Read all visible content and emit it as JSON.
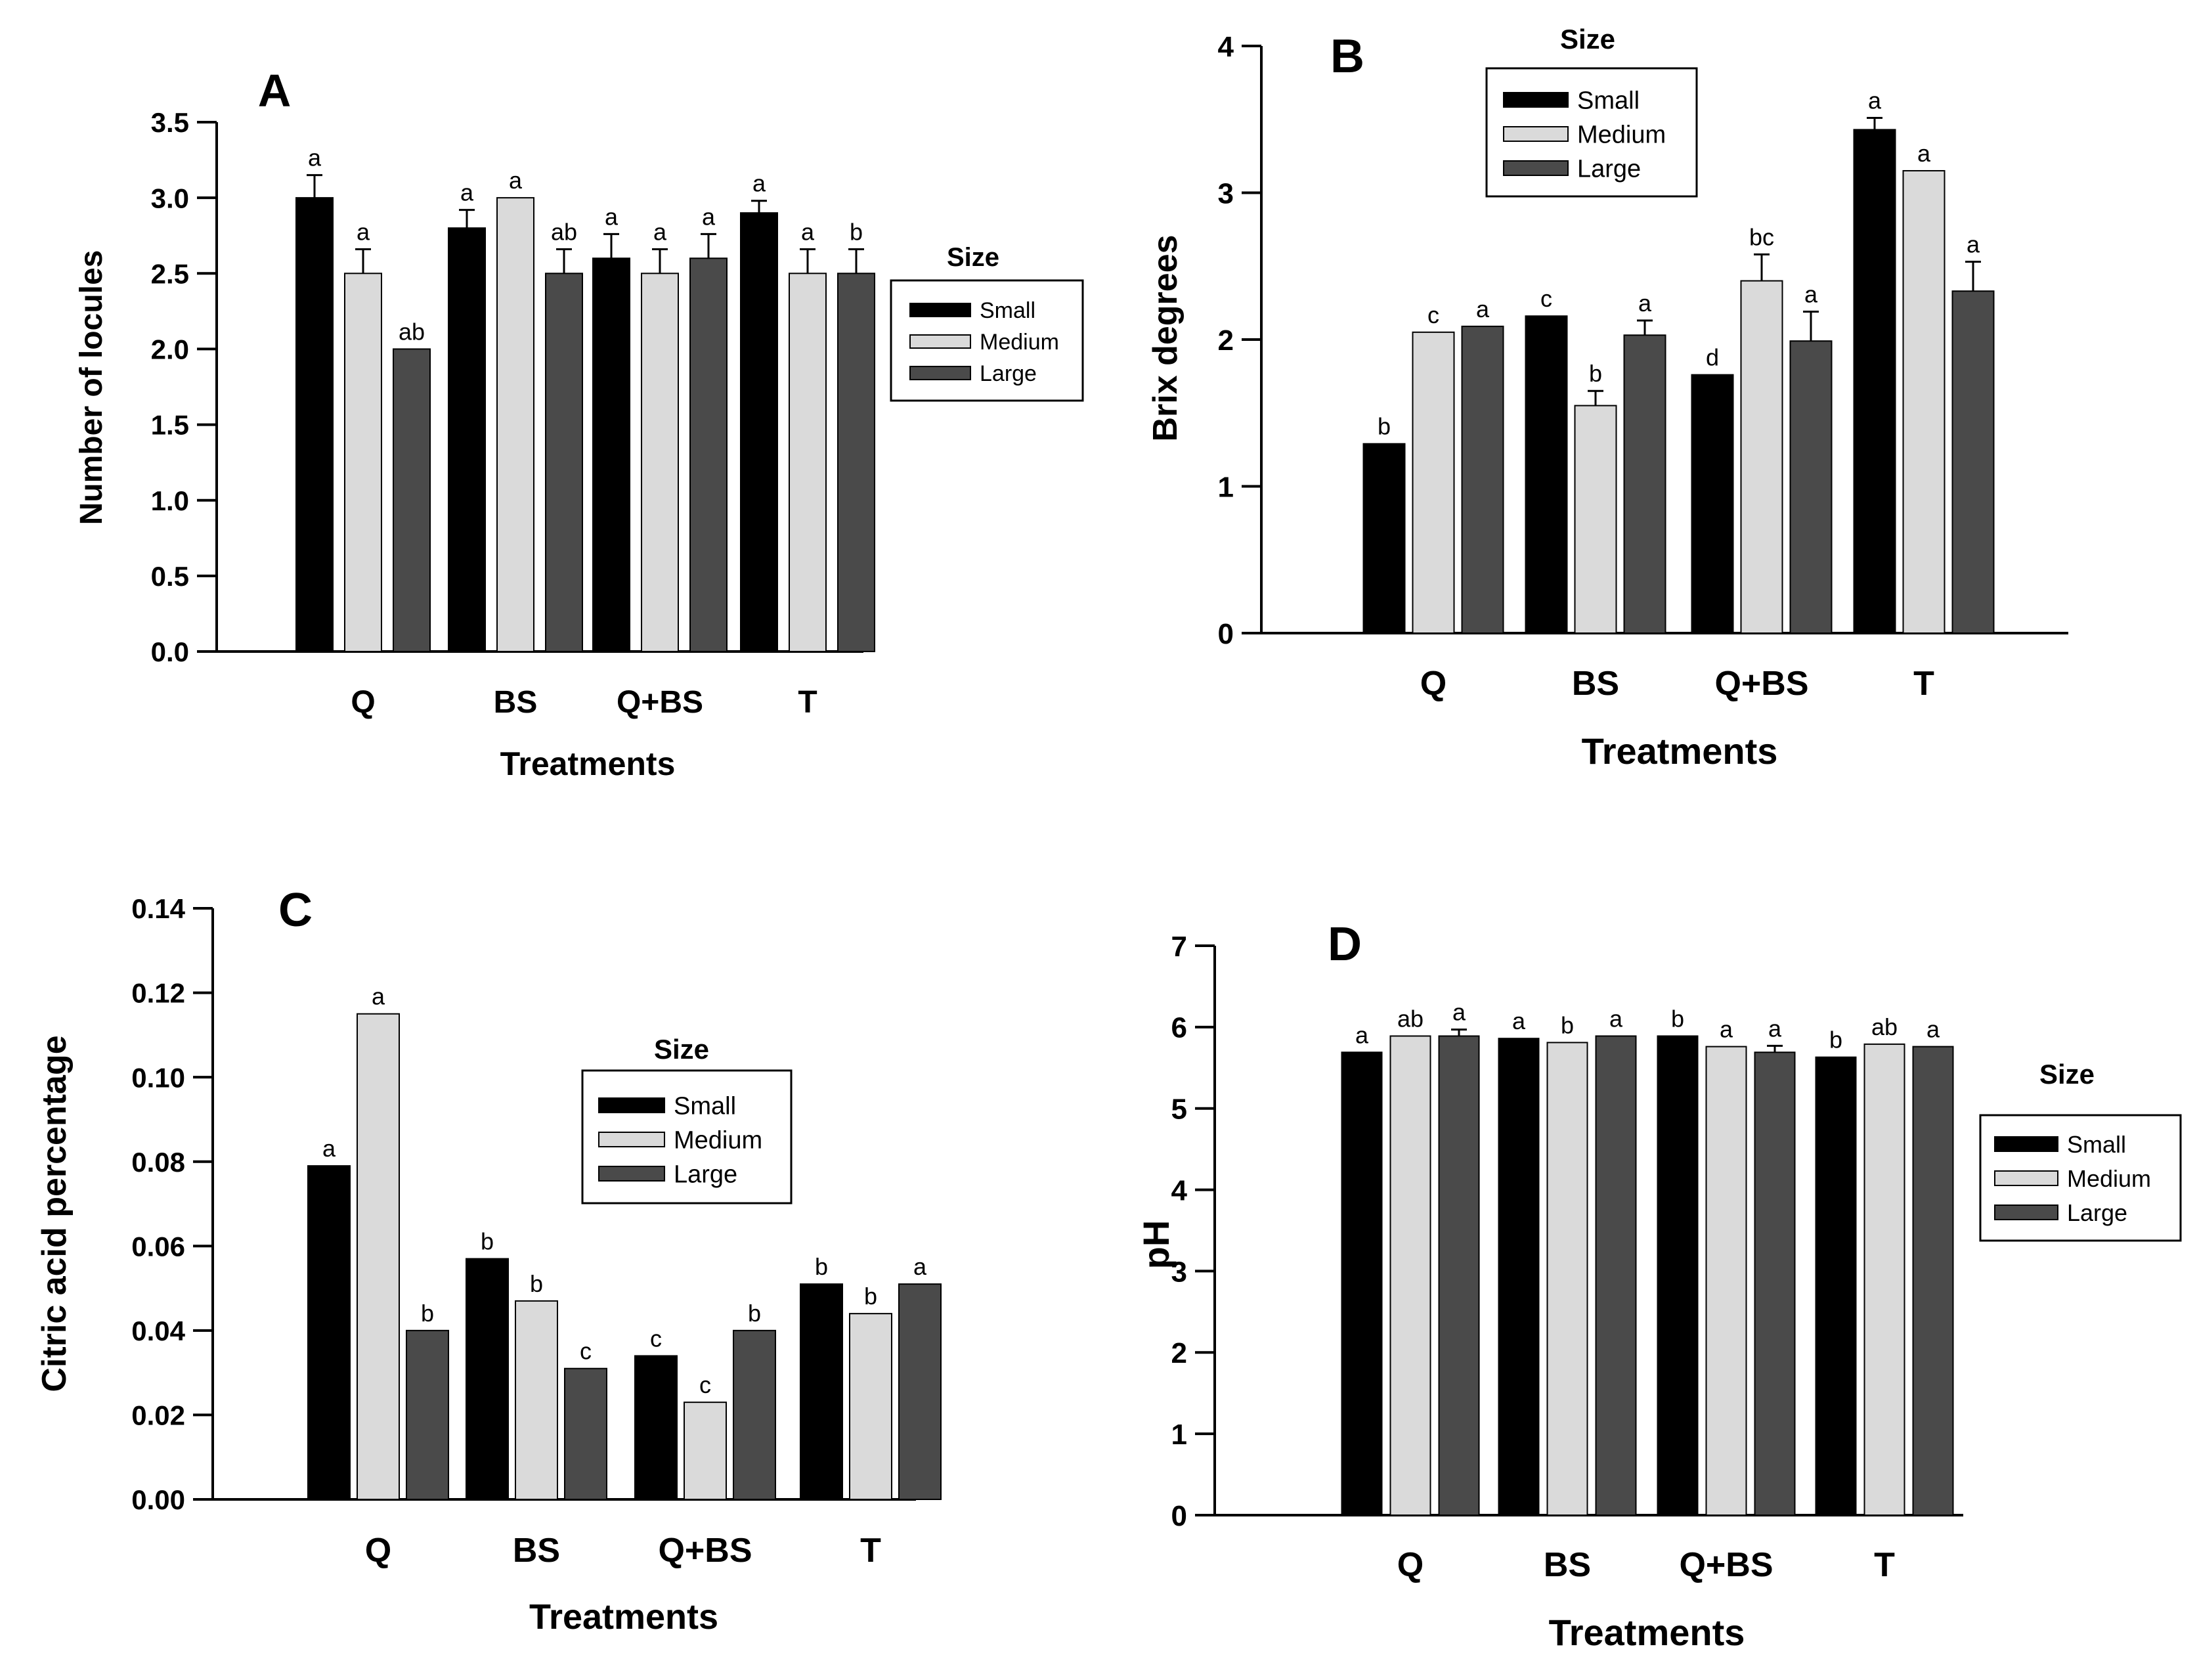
{
  "colors": {
    "small": "#000000",
    "medium": "#dadada",
    "large": "#4a4a4a",
    "axis": "#000000",
    "background": "#ffffff"
  },
  "chart_data": [
    {
      "panel": "A",
      "type": "bar",
      "title": "",
      "xlabel": "Treatments",
      "ylabel": "Number of locules",
      "categories": [
        "Q",
        "BS",
        "Q+BS",
        "T"
      ],
      "ylim": [
        0,
        3.5
      ],
      "yticks": [
        "0.0",
        "0.5",
        "1.0",
        "1.5",
        "2.0",
        "2.5",
        "3.0",
        "3.5"
      ],
      "grid": false,
      "legend": {
        "title": "Size",
        "placement": "right",
        "entries": [
          "Small",
          "Medium",
          "Large"
        ]
      },
      "series": [
        {
          "name": "Small",
          "values": [
            3.0,
            2.8,
            2.6,
            2.9
          ],
          "errors": [
            0.15,
            0.12,
            0.16,
            0.08
          ],
          "letters": [
            "a",
            "a",
            "a",
            "a"
          ]
        },
        {
          "name": "Medium",
          "values": [
            2.5,
            3.0,
            2.5,
            2.5
          ],
          "errors": [
            0.16,
            0.0,
            0.16,
            0.16
          ],
          "letters": [
            "a",
            "a",
            "a",
            "a"
          ]
        },
        {
          "name": "Large",
          "values": [
            2.0,
            2.5,
            2.6,
            2.5
          ],
          "errors": [
            0.0,
            0.16,
            0.16,
            0.16
          ],
          "letters": [
            "ab",
            "ab",
            "a",
            "b"
          ]
        }
      ]
    },
    {
      "panel": "B",
      "type": "bar",
      "title": "",
      "xlabel": "Treatments",
      "ylabel": "Brix degrees",
      "categories": [
        "Q",
        "BS",
        "Q+BS",
        "T"
      ],
      "ylim": [
        0,
        4
      ],
      "yticks": [
        "0",
        "1",
        "2",
        "3",
        "4"
      ],
      "grid": false,
      "legend": {
        "title": "Size",
        "placement": "top",
        "entries": [
          "Small",
          "Medium",
          "Large"
        ]
      },
      "series": [
        {
          "name": "Small",
          "values": [
            1.29,
            2.16,
            1.76,
            3.43
          ],
          "errors": [
            0.0,
            0.0,
            0.0,
            0.08
          ],
          "letters": [
            "b",
            "c",
            "d",
            "a"
          ]
        },
        {
          "name": "Medium",
          "values": [
            2.05,
            1.55,
            2.4,
            3.15
          ],
          "errors": [
            0.0,
            0.1,
            0.18,
            0.0
          ],
          "letters": [
            "c",
            "b",
            "bc",
            "a"
          ]
        },
        {
          "name": "Large",
          "values": [
            2.09,
            2.03,
            1.99,
            2.33
          ],
          "errors": [
            0.0,
            0.1,
            0.2,
            0.2
          ],
          "letters": [
            "a",
            "a",
            "a",
            "a"
          ]
        }
      ]
    },
    {
      "panel": "C",
      "type": "bar",
      "title": "",
      "xlabel": "Treatments",
      "ylabel": "Citric acid percentage",
      "categories": [
        "Q",
        "BS",
        "Q+BS",
        "T"
      ],
      "ylim": [
        0,
        0.14
      ],
      "yticks": [
        "0.00",
        "0.02",
        "0.04",
        "0.06",
        "0.08",
        "0.10",
        "0.12",
        "0.14"
      ],
      "grid": false,
      "legend": {
        "title": "Size",
        "placement": "center-right",
        "entries": [
          "Small",
          "Medium",
          "Large"
        ]
      },
      "series": [
        {
          "name": "Small",
          "values": [
            0.079,
            0.057,
            0.034,
            0.051
          ],
          "errors": [
            0,
            0,
            0,
            0
          ],
          "letters": [
            "a",
            "b",
            "c",
            "b"
          ]
        },
        {
          "name": "Medium",
          "values": [
            0.115,
            0.047,
            0.023,
            0.044
          ],
          "errors": [
            0,
            0,
            0,
            0
          ],
          "letters": [
            "a",
            "b",
            "c",
            "b"
          ]
        },
        {
          "name": "Large",
          "values": [
            0.04,
            0.031,
            0.04,
            0.051
          ],
          "errors": [
            0,
            0,
            0,
            0
          ],
          "letters": [
            "b",
            "c",
            "b",
            "a"
          ]
        }
      ]
    },
    {
      "panel": "D",
      "type": "bar",
      "title": "",
      "xlabel": "Treatments",
      "ylabel": "pH",
      "categories": [
        "Q",
        "BS",
        "Q+BS",
        "T"
      ],
      "ylim": [
        0,
        7
      ],
      "yticks": [
        "0",
        "1",
        "2",
        "3",
        "4",
        "5",
        "6",
        "7"
      ],
      "grid": false,
      "legend": {
        "title": "Size",
        "placement": "right",
        "entries": [
          "Small",
          "Medium",
          "Large"
        ]
      },
      "series": [
        {
          "name": "Small",
          "values": [
            5.69,
            5.86,
            5.89,
            5.63
          ],
          "errors": [
            0,
            0,
            0,
            0
          ],
          "letters": [
            "a",
            "a",
            "b",
            "b"
          ]
        },
        {
          "name": "Medium",
          "values": [
            5.89,
            5.81,
            5.76,
            5.79
          ],
          "errors": [
            0,
            0,
            0,
            0
          ],
          "letters": [
            "ab",
            "b",
            "a",
            "ab"
          ]
        },
        {
          "name": "Large",
          "values": [
            5.89,
            5.89,
            5.69,
            5.76
          ],
          "errors": [
            0.08,
            0,
            0.08,
            0
          ],
          "letters": [
            "a",
            "a",
            "a",
            "a"
          ]
        }
      ]
    }
  ]
}
